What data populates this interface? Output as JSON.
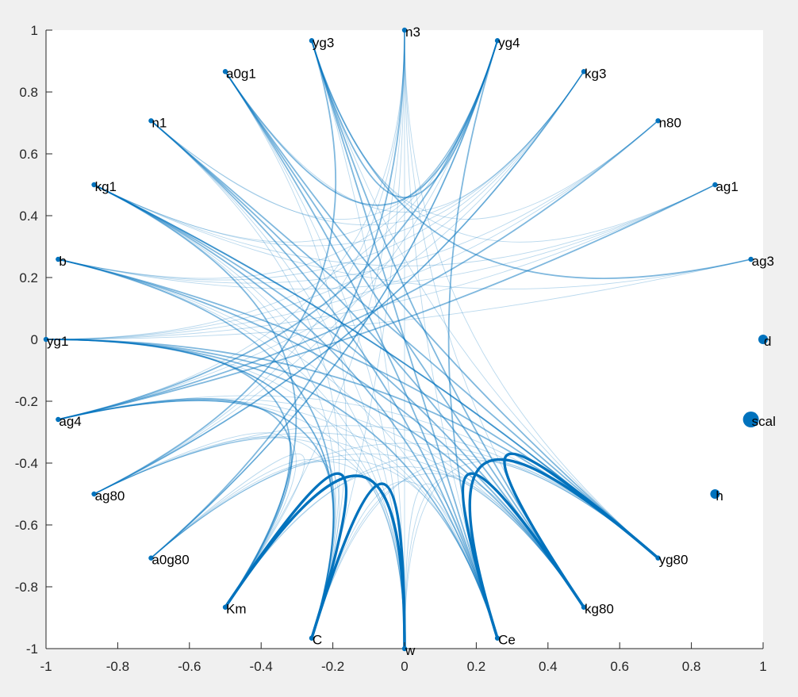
{
  "chart_data": {
    "type": "graph",
    "title": "",
    "xlabel": "",
    "ylabel": "",
    "xlim": [
      -1,
      1
    ],
    "ylim": [
      -1,
      1
    ],
    "xticks": [
      "-1",
      "-0.8",
      "-0.6",
      "-0.4",
      "-0.2",
      "0",
      "0.2",
      "0.4",
      "0.6",
      "0.8",
      "1"
    ],
    "yticks": [
      "1",
      "0.8",
      "0.6",
      "0.4",
      "0.2",
      "0",
      "-0.2",
      "-0.4",
      "-0.6",
      "-0.8",
      "-1"
    ],
    "grid": false,
    "colors": {
      "figure_bg": "#f0f0f0",
      "axes_bg": "#ffffff",
      "node": "#0072bd",
      "edge": "#0072bd",
      "axis": "#262626"
    },
    "nodes": [
      {
        "name": "d",
        "x": 1.0,
        "y": 0.0,
        "size": "medium"
      },
      {
        "name": "ag3",
        "x": 0.966,
        "y": 0.259,
        "size": "small"
      },
      {
        "name": "ag1",
        "x": 0.866,
        "y": 0.5,
        "size": "small"
      },
      {
        "name": "n80",
        "x": 0.707,
        "y": 0.707,
        "size": "small"
      },
      {
        "name": "kg3",
        "x": 0.5,
        "y": 0.866,
        "size": "small"
      },
      {
        "name": "yg4",
        "x": 0.259,
        "y": 0.966,
        "size": "small"
      },
      {
        "name": "n3",
        "x": 0.0,
        "y": 1.0,
        "size": "small"
      },
      {
        "name": "yg3",
        "x": -0.259,
        "y": 0.966,
        "size": "small"
      },
      {
        "name": "a0g1",
        "x": -0.5,
        "y": 0.866,
        "size": "small"
      },
      {
        "name": "n1",
        "x": -0.707,
        "y": 0.707,
        "size": "small"
      },
      {
        "name": "kg1",
        "x": -0.866,
        "y": 0.5,
        "size": "small"
      },
      {
        "name": "b",
        "x": -0.966,
        "y": 0.259,
        "size": "small"
      },
      {
        "name": "yg1",
        "x": -1.0,
        "y": 0.0,
        "size": "small"
      },
      {
        "name": "ag4",
        "x": -0.966,
        "y": -0.259,
        "size": "small"
      },
      {
        "name": "ag80",
        "x": -0.866,
        "y": -0.5,
        "size": "small"
      },
      {
        "name": "a0g80",
        "x": -0.707,
        "y": -0.707,
        "size": "small"
      },
      {
        "name": "Km",
        "x": -0.5,
        "y": -0.866,
        "size": "small"
      },
      {
        "name": "C",
        "x": -0.259,
        "y": -0.966,
        "size": "small"
      },
      {
        "name": "w",
        "x": 0.0,
        "y": -1.0,
        "size": "small"
      },
      {
        "name": "Ce",
        "x": 0.259,
        "y": -0.966,
        "size": "small"
      },
      {
        "name": "kg80",
        "x": 0.5,
        "y": -0.866,
        "size": "small"
      },
      {
        "name": "yg80",
        "x": 0.707,
        "y": -0.707,
        "size": "small"
      },
      {
        "name": "h",
        "x": 0.866,
        "y": -0.5,
        "size": "medium"
      },
      {
        "name": "scal",
        "x": 0.966,
        "y": -0.259,
        "size": "large"
      }
    ],
    "edges": [
      [
        "Km",
        "C",
        3
      ],
      [
        "Km",
        "w",
        3
      ],
      [
        "C",
        "w",
        3
      ],
      [
        "Ce",
        "kg80",
        3
      ],
      [
        "Ce",
        "yg80",
        3
      ],
      [
        "kg80",
        "yg80",
        3
      ],
      [
        "yg3",
        "yg4",
        2
      ],
      [
        "yg3",
        "ag3",
        2
      ],
      [
        "yg3",
        "Ce",
        2
      ],
      [
        "yg3",
        "kg80",
        2
      ],
      [
        "yg4",
        "a0g1",
        2
      ],
      [
        "yg4",
        "ag4",
        2
      ],
      [
        "a0g1",
        "Ce",
        2
      ],
      [
        "a0g1",
        "yg80",
        2
      ],
      [
        "n1",
        "Ce",
        2
      ],
      [
        "n1",
        "kg80",
        2
      ],
      [
        "n1",
        "yg80",
        2
      ],
      [
        "kg1",
        "Ce",
        2
      ],
      [
        "kg1",
        "kg80",
        2
      ],
      [
        "kg1",
        "yg80",
        2
      ],
      [
        "b",
        "yg80",
        2
      ],
      [
        "b",
        "kg80",
        2
      ],
      [
        "b",
        "C",
        2
      ],
      [
        "yg1",
        "Ce",
        2
      ],
      [
        "yg1",
        "kg80",
        2
      ],
      [
        "yg1",
        "yg80",
        2
      ],
      [
        "yg1",
        "Km",
        2
      ],
      [
        "ag4",
        "ag1",
        2
      ],
      [
        "ag4",
        "n80",
        2
      ],
      [
        "ag4",
        "C",
        2
      ],
      [
        "ag80",
        "kg3",
        2
      ],
      [
        "ag80",
        "yg3",
        2
      ],
      [
        "a0g80",
        "yg4",
        2
      ],
      [
        "a0g80",
        "n3",
        2
      ],
      [
        "Km",
        "kg1",
        2
      ],
      [
        "Km",
        "ag4",
        2
      ],
      [
        "C",
        "yg1",
        2
      ],
      [
        "Ce",
        "yg4",
        2
      ],
      [
        "kg80",
        "a0g1",
        2
      ],
      [
        "yg80",
        "kg1",
        2
      ],
      [
        "n3",
        "Ce",
        1
      ],
      [
        "n3",
        "kg80",
        1
      ],
      [
        "n3",
        "yg80",
        1
      ],
      [
        "n3",
        "C",
        1
      ],
      [
        "n3",
        "Km",
        1
      ],
      [
        "n3",
        "w",
        1
      ],
      [
        "yg3",
        "yg80",
        1
      ],
      [
        "yg3",
        "w",
        1
      ],
      [
        "yg4",
        "n1",
        1
      ],
      [
        "yg4",
        "kg1",
        1
      ],
      [
        "yg4",
        "yg1",
        1
      ],
      [
        "yg4",
        "b",
        1
      ],
      [
        "kg3",
        "yg1",
        1
      ],
      [
        "kg3",
        "kg1",
        1
      ],
      [
        "kg3",
        "b",
        1
      ],
      [
        "kg3",
        "n1",
        1
      ],
      [
        "n80",
        "yg1",
        1
      ],
      [
        "n80",
        "b",
        1
      ],
      [
        "ag1",
        "yg1",
        1
      ],
      [
        "ag1",
        "kg1",
        1
      ],
      [
        "ag1",
        "b",
        1
      ],
      [
        "ag3",
        "yg1",
        1
      ],
      [
        "ag3",
        "kg1",
        1
      ],
      [
        "a0g1",
        "w",
        1
      ],
      [
        "a0g1",
        "C",
        1
      ],
      [
        "a0g1",
        "kg3",
        1
      ],
      [
        "n1",
        "w",
        1
      ],
      [
        "n1",
        "C",
        1
      ],
      [
        "kg1",
        "w",
        1
      ],
      [
        "kg1",
        "C",
        1
      ],
      [
        "b",
        "w",
        1
      ],
      [
        "b",
        "Ce",
        1
      ],
      [
        "yg1",
        "w",
        1
      ],
      [
        "yg1",
        "C",
        1
      ],
      [
        "ag4",
        "w",
        1
      ],
      [
        "ag4",
        "Ce",
        1
      ],
      [
        "ag4",
        "kg80",
        1
      ],
      [
        "ag4",
        "yg80",
        1
      ],
      [
        "ag80",
        "w",
        1
      ],
      [
        "ag80",
        "Ce",
        1
      ],
      [
        "ag80",
        "kg80",
        1
      ],
      [
        "ag80",
        "yg80",
        1
      ],
      [
        "ag80",
        "C",
        1
      ],
      [
        "ag80",
        "Km",
        1
      ],
      [
        "a0g80",
        "w",
        1
      ],
      [
        "a0g80",
        "Ce",
        1
      ],
      [
        "a0g80",
        "kg80",
        1
      ],
      [
        "a0g80",
        "yg80",
        1
      ],
      [
        "a0g80",
        "C",
        1
      ],
      [
        "a0g80",
        "Km",
        1
      ],
      [
        "Km",
        "kg80",
        1
      ],
      [
        "Km",
        "yg80",
        1
      ],
      [
        "C",
        "Ce",
        1
      ],
      [
        "C",
        "kg80",
        1
      ],
      [
        "C",
        "yg80",
        1
      ],
      [
        "w",
        "kg80",
        1
      ],
      [
        "w",
        "yg80",
        1
      ],
      [
        "Ce",
        "w",
        1
      ],
      [
        "yg3",
        "ag1",
        1
      ],
      [
        "yg3",
        "n80",
        1
      ],
      [
        "yg4",
        "ag80",
        1
      ],
      [
        "yg4",
        "a0g80",
        1
      ],
      [
        "n3",
        "ag4",
        1
      ],
      [
        "n3",
        "ag80",
        1
      ],
      [
        "kg3",
        "ag4",
        1
      ],
      [
        "kg3",
        "ag80",
        1
      ]
    ]
  }
}
